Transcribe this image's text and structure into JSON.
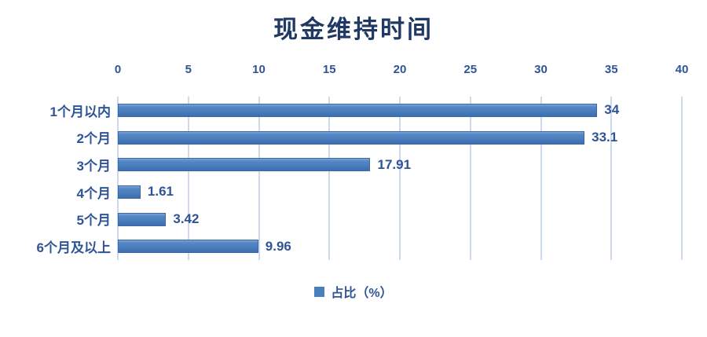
{
  "chart_data": {
    "type": "bar",
    "orientation": "horizontal",
    "title": "现金维持时间",
    "categories": [
      "1个月以内",
      "2个月",
      "3个月",
      "4个月",
      "5个月",
      "6个月及以上"
    ],
    "values": [
      34,
      33.1,
      17.91,
      1.61,
      3.42,
      9.96
    ],
    "value_labels": [
      "34",
      "33.1",
      "17.91",
      "1.61",
      "3.42",
      "9.96"
    ],
    "series_name": "占比（%）",
    "xlabel": "",
    "ylabel": "",
    "xlim": [
      0,
      40
    ],
    "ticks": [
      0,
      5,
      10,
      15,
      20,
      25,
      30,
      35,
      40
    ],
    "tick_position": "top",
    "grid": true,
    "legend": {
      "label": "占比（%）",
      "position": "bottom"
    },
    "colors": {
      "bar": "#4a7ebc",
      "bar_border": "#3b69a7",
      "gridline": "#cdd9ee",
      "title_text": "#1f3864",
      "axis_text": "#2f5496"
    }
  }
}
